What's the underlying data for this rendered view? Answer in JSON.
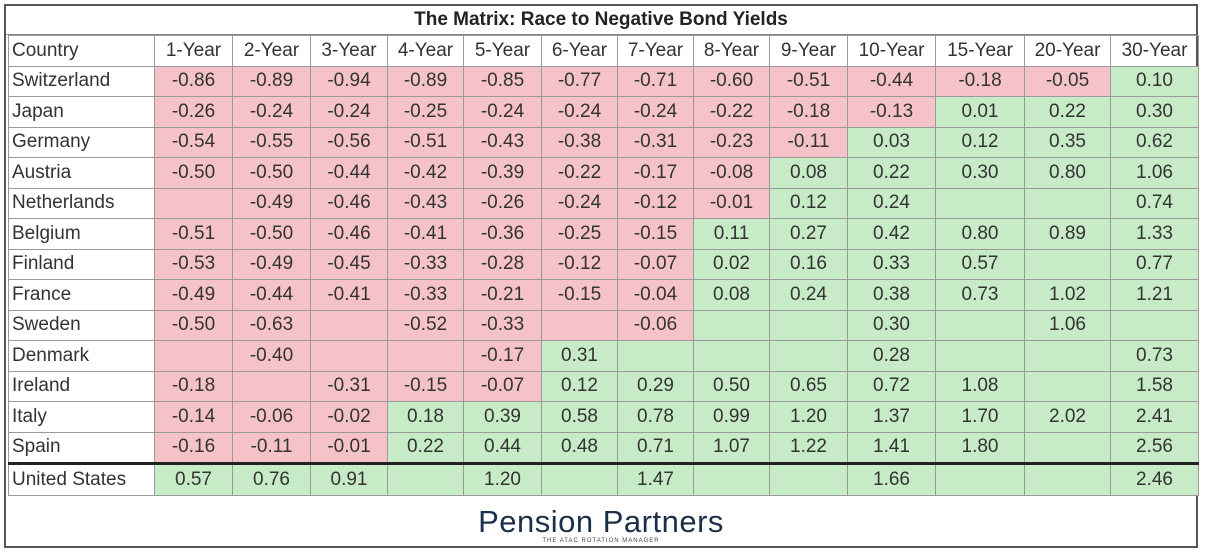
{
  "title": "The Matrix:  Race to Negative Bond Yields",
  "table": {
    "header": [
      "Country",
      "1-Year",
      "2-Year",
      "3-Year",
      "4-Year",
      "5-Year",
      "6-Year",
      "7-Year",
      "8-Year",
      "9-Year",
      "10-Year",
      "15-Year",
      "20-Year",
      "30-Year"
    ],
    "rows": [
      {
        "country": "Switzerland",
        "values": [
          "-0.86",
          "-0.89",
          "-0.94",
          "-0.89",
          "-0.85",
          "-0.77",
          "-0.71",
          "-0.60",
          "-0.51",
          "-0.44",
          "-0.18",
          "-0.05",
          "0.10"
        ],
        "fills": [
          "#f5c3c7",
          "#f5c3c7",
          "#f5c3c7",
          "#f5c3c7",
          "#f5c3c7",
          "#f5c3c7",
          "#f5c3c7",
          "#f5c3c7",
          "#f5c3c7",
          "#f5c3c7",
          "#f5c3c7",
          "#f5c3c7",
          "#c6ebc6"
        ]
      },
      {
        "country": "Japan",
        "values": [
          "-0.26",
          "-0.24",
          "-0.24",
          "-0.25",
          "-0.24",
          "-0.24",
          "-0.24",
          "-0.22",
          "-0.18",
          "-0.13",
          "0.01",
          "0.22",
          "0.30"
        ],
        "fills": [
          "#f5c3c7",
          "#f5c3c7",
          "#f5c3c7",
          "#f5c3c7",
          "#f5c3c7",
          "#f5c3c7",
          "#f5c3c7",
          "#f5c3c7",
          "#f5c3c7",
          "#f5c3c7",
          "#c6ebc6",
          "#c6ebc6",
          "#c6ebc6"
        ]
      },
      {
        "country": "Germany",
        "values": [
          "-0.54",
          "-0.55",
          "-0.56",
          "-0.51",
          "-0.43",
          "-0.38",
          "-0.31",
          "-0.23",
          "-0.11",
          "0.03",
          "0.12",
          "0.35",
          "0.62"
        ],
        "fills": [
          "#f5c3c7",
          "#f5c3c7",
          "#f5c3c7",
          "#f5c3c7",
          "#f5c3c7",
          "#f5c3c7",
          "#f5c3c7",
          "#f5c3c7",
          "#f5c3c7",
          "#c6ebc6",
          "#c6ebc6",
          "#c6ebc6",
          "#c6ebc6"
        ]
      },
      {
        "country": "Austria",
        "values": [
          "-0.50",
          "-0.50",
          "-0.44",
          "-0.42",
          "-0.39",
          "-0.22",
          "-0.17",
          "-0.08",
          "0.08",
          "0.22",
          "0.30",
          "0.80",
          "1.06"
        ],
        "fills": [
          "#f5c3c7",
          "#f5c3c7",
          "#f5c3c7",
          "#f5c3c7",
          "#f5c3c7",
          "#f5c3c7",
          "#f5c3c7",
          "#f5c3c7",
          "#c6ebc6",
          "#c6ebc6",
          "#c6ebc6",
          "#c6ebc6",
          "#c6ebc6"
        ]
      },
      {
        "country": "Netherlands",
        "values": [
          null,
          "-0.49",
          "-0.46",
          "-0.43",
          "-0.26",
          "-0.24",
          "-0.12",
          "-0.01",
          "0.12",
          "0.24",
          null,
          null,
          "0.74"
        ],
        "fills": [
          "#f5c3c7",
          "#f5c3c7",
          "#f5c3c7",
          "#f5c3c7",
          "#f5c3c7",
          "#f5c3c7",
          "#f5c3c7",
          "#f5c3c7",
          "#c6ebc6",
          "#c6ebc6",
          "#c6ebc6",
          "#c6ebc6",
          "#c6ebc6"
        ]
      },
      {
        "country": "Belgium",
        "values": [
          "-0.51",
          "-0.50",
          "-0.46",
          "-0.41",
          "-0.36",
          "-0.25",
          "-0.15",
          "0.11",
          "0.27",
          "0.42",
          "0.80",
          "0.89",
          "1.33"
        ],
        "fills": [
          "#f5c3c7",
          "#f5c3c7",
          "#f5c3c7",
          "#f5c3c7",
          "#f5c3c7",
          "#f5c3c7",
          "#f5c3c7",
          "#c6ebc6",
          "#c6ebc6",
          "#c6ebc6",
          "#c6ebc6",
          "#c6ebc6",
          "#c6ebc6"
        ]
      },
      {
        "country": "Finland",
        "values": [
          "-0.53",
          "-0.49",
          "-0.45",
          "-0.33",
          "-0.28",
          "-0.12",
          "-0.07",
          "0.02",
          "0.16",
          "0.33",
          "0.57",
          null,
          "0.77"
        ],
        "fills": [
          "#f5c3c7",
          "#f5c3c7",
          "#f5c3c7",
          "#f5c3c7",
          "#f5c3c7",
          "#f5c3c7",
          "#f5c3c7",
          "#c6ebc6",
          "#c6ebc6",
          "#c6ebc6",
          "#c6ebc6",
          "#c6ebc6",
          "#c6ebc6"
        ]
      },
      {
        "country": "France",
        "values": [
          "-0.49",
          "-0.44",
          "-0.41",
          "-0.33",
          "-0.21",
          "-0.15",
          "-0.04",
          "0.08",
          "0.24",
          "0.38",
          "0.73",
          "1.02",
          "1.21"
        ],
        "fills": [
          "#f5c3c7",
          "#f5c3c7",
          "#f5c3c7",
          "#f5c3c7",
          "#f5c3c7",
          "#f5c3c7",
          "#f5c3c7",
          "#c6ebc6",
          "#c6ebc6",
          "#c6ebc6",
          "#c6ebc6",
          "#c6ebc6",
          "#c6ebc6"
        ]
      },
      {
        "country": "Sweden",
        "values": [
          "-0.50",
          "-0.63",
          null,
          "-0.52",
          "-0.33",
          null,
          "-0.06",
          null,
          null,
          "0.30",
          null,
          "1.06",
          null
        ],
        "fills": [
          "#f5c3c7",
          "#f5c3c7",
          "#f5c3c7",
          "#f5c3c7",
          "#f5c3c7",
          "#f5c3c7",
          "#f5c3c7",
          "#c6ebc6",
          "#c6ebc6",
          "#c6ebc6",
          "#c6ebc6",
          "#c6ebc6",
          "#c6ebc6"
        ]
      },
      {
        "country": "Denmark",
        "values": [
          null,
          "-0.40",
          null,
          null,
          "-0.17",
          "0.31",
          null,
          null,
          null,
          "0.28",
          null,
          null,
          "0.73"
        ],
        "fills": [
          "#f5c3c7",
          "#f5c3c7",
          "#f5c3c7",
          "#f5c3c7",
          "#f5c3c7",
          "#c6ebc6",
          "#c6ebc6",
          "#c6ebc6",
          "#c6ebc6",
          "#c6ebc6",
          "#c6ebc6",
          "#c6ebc6",
          "#c6ebc6"
        ]
      },
      {
        "country": "Ireland",
        "values": [
          "-0.18",
          null,
          "-0.31",
          "-0.15",
          "-0.07",
          "0.12",
          "0.29",
          "0.50",
          "0.65",
          "0.72",
          "1.08",
          null,
          "1.58"
        ],
        "fills": [
          "#f5c3c7",
          "#f5c3c7",
          "#f5c3c7",
          "#f5c3c7",
          "#f5c3c7",
          "#c6ebc6",
          "#c6ebc6",
          "#c6ebc6",
          "#c6ebc6",
          "#c6ebc6",
          "#c6ebc6",
          "#c6ebc6",
          "#c6ebc6"
        ]
      },
      {
        "country": "Italy",
        "values": [
          "-0.14",
          "-0.06",
          "-0.02",
          "0.18",
          "0.39",
          "0.58",
          "0.78",
          "0.99",
          "1.20",
          "1.37",
          "1.70",
          "2.02",
          "2.41"
        ],
        "fills": [
          "#f5c3c7",
          "#f5c3c7",
          "#f5c3c7",
          "#c6ebc6",
          "#c6ebc6",
          "#c6ebc6",
          "#c6ebc6",
          "#c6ebc6",
          "#c6ebc6",
          "#c6ebc6",
          "#c6ebc6",
          "#c6ebc6",
          "#c6ebc6"
        ]
      },
      {
        "country": "Spain",
        "values": [
          "-0.16",
          "-0.11",
          "-0.01",
          "0.22",
          "0.44",
          "0.48",
          "0.71",
          "1.07",
          "1.22",
          "1.41",
          "1.80",
          null,
          "2.56"
        ],
        "fills": [
          "#f5c3c7",
          "#f5c3c7",
          "#f5c3c7",
          "#c6ebc6",
          "#c6ebc6",
          "#c6ebc6",
          "#c6ebc6",
          "#c6ebc6",
          "#c6ebc6",
          "#c6ebc6",
          "#c6ebc6",
          "#c6ebc6",
          "#c6ebc6"
        ]
      },
      {
        "country": "United States",
        "values": [
          "0.57",
          "0.76",
          "0.91",
          null,
          "1.20",
          null,
          "1.47",
          null,
          null,
          "1.66",
          null,
          null,
          "2.46"
        ],
        "fills": [
          "#c6ebc6",
          "#c6ebc6",
          "#c6ebc6",
          "#c6ebc6",
          "#c6ebc6",
          "#c6ebc6",
          "#c6ebc6",
          "#c6ebc6",
          "#c6ebc6",
          "#c6ebc6",
          "#c6ebc6",
          "#c6ebc6",
          "#c6ebc6"
        ]
      }
    ]
  },
  "footer": {
    "logo": "Pension Partners",
    "tagline": "THE ATAC ROTATION MANAGER"
  }
}
